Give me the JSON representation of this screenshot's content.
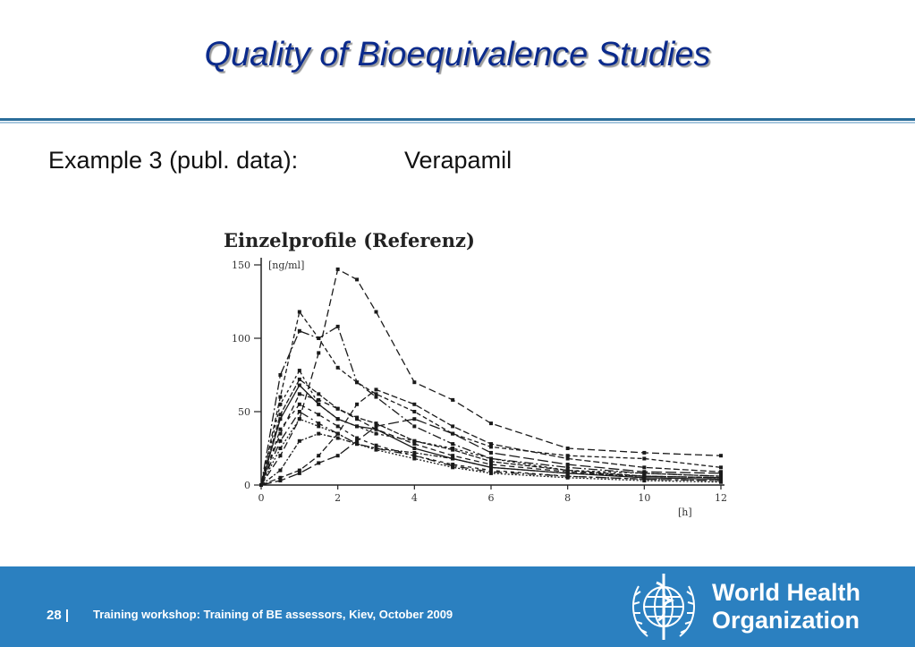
{
  "slide": {
    "title": "Quality of Bioequivalence Studies",
    "subtitle_left": "Example 3 (publ. data):",
    "subtitle_right": "Verapamil"
  },
  "footer": {
    "page_number": "28",
    "separator": "|",
    "text": "Training workshop: Training of BE assessors, Kiev, October 2009",
    "org_line1": "World Health",
    "org_line2": "Organization"
  },
  "colors": {
    "title": "#0a2a8c",
    "footer_bg": "#2b80c0",
    "rule": "#2a6d9a",
    "curves": "#1a1a1a"
  },
  "chart_data": {
    "type": "line",
    "title": "Einzelprofile (Referenz)",
    "xlabel": "[h]",
    "ylabel": "[ng/ml]",
    "x_ticks": [
      "0",
      "2",
      "4",
      "6",
      "8",
      "10",
      "12"
    ],
    "y_ticks": [
      "0",
      "50",
      "100",
      "150"
    ],
    "xlim": [
      0,
      12
    ],
    "ylim": [
      0,
      150
    ],
    "x": [
      0,
      0.5,
      1,
      1.5,
      2,
      2.5,
      3,
      4,
      5,
      6,
      8,
      10,
      12
    ],
    "series": [
      {
        "values": [
          0,
          20,
          45,
          90,
          147,
          140,
          118,
          70,
          58,
          42,
          25,
          22,
          20
        ]
      },
      {
        "values": [
          0,
          60,
          118,
          100,
          80,
          70,
          62,
          50,
          35,
          26,
          20,
          18,
          12
        ]
      },
      {
        "values": [
          0,
          75,
          105,
          100,
          108,
          70,
          60,
          40,
          28,
          18,
          12,
          8,
          6
        ]
      },
      {
        "values": [
          0,
          55,
          78,
          55,
          45,
          40,
          35,
          30,
          25,
          18,
          10,
          8,
          6
        ]
      },
      {
        "values": [
          0,
          48,
          72,
          62,
          52,
          46,
          42,
          30,
          24,
          16,
          10,
          6,
          5
        ]
      },
      {
        "values": [
          0,
          45,
          68,
          55,
          45,
          40,
          38,
          25,
          18,
          12,
          8,
          5,
          4
        ]
      },
      {
        "values": [
          0,
          38,
          55,
          48,
          40,
          32,
          27,
          20,
          14,
          10,
          6,
          4,
          3
        ]
      },
      {
        "values": [
          0,
          30,
          50,
          42,
          35,
          28,
          25,
          20,
          13,
          9,
          6,
          4,
          3
        ]
      },
      {
        "values": [
          0,
          25,
          45,
          40,
          35,
          28,
          24,
          18,
          12,
          8,
          5,
          3,
          2
        ]
      },
      {
        "values": [
          0,
          5,
          10,
          20,
          35,
          55,
          65,
          55,
          40,
          28,
          18,
          12,
          9
        ]
      },
      {
        "values": [
          0,
          3,
          8,
          15,
          20,
          30,
          40,
          45,
          35,
          22,
          14,
          9,
          8
        ]
      },
      {
        "values": [
          0,
          10,
          30,
          35,
          32,
          28,
          25,
          22,
          18,
          12,
          8,
          6,
          5
        ]
      },
      {
        "values": [
          0,
          35,
          62,
          58,
          52,
          45,
          38,
          28,
          20,
          14,
          9,
          6,
          5
        ]
      }
    ]
  }
}
